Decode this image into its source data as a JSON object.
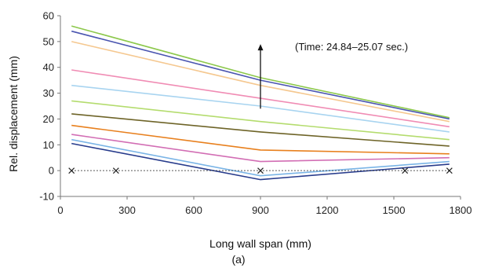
{
  "chart_data": {
    "type": "line",
    "xlabel": "Long wall span (mm)",
    "ylabel": "Rel. displacement (mm)",
    "xlim": [
      0,
      1800
    ],
    "ylim": [
      -10,
      60
    ],
    "x_ticks": [
      "0",
      "300",
      "600",
      "900",
      "1200",
      "1500",
      "1800"
    ],
    "y_ticks": [
      "-10",
      "0",
      "10",
      "20",
      "30",
      "40",
      "50",
      "60"
    ],
    "grid": false,
    "annotation": "(Time: 24.84–25.07 sec.)",
    "caption": "(a)",
    "x": [
      50,
      900,
      1750
    ],
    "series": [
      {
        "color": "#8cc84b",
        "values": [
          56,
          36,
          20.5
        ]
      },
      {
        "color": "#4a55b0",
        "values": [
          54,
          35,
          20
        ]
      },
      {
        "color": "#f5c890",
        "values": [
          50,
          33,
          19
        ]
      },
      {
        "color": "#f08cb4",
        "values": [
          39,
          28,
          17
        ]
      },
      {
        "color": "#a8d4f0",
        "values": [
          33,
          25,
          15
        ]
      },
      {
        "color": "#b4dc6e",
        "values": [
          27,
          19,
          12
        ]
      },
      {
        "color": "#6e6428",
        "values": [
          22,
          15,
          9.5
        ]
      },
      {
        "color": "#e8801e",
        "values": [
          17.5,
          8,
          6.5
        ]
      },
      {
        "color": "#d26eb4",
        "values": [
          14,
          3.5,
          5
        ]
      },
      {
        "color": "#7ab4e6",
        "values": [
          12,
          -2,
          3.5
        ]
      },
      {
        "color": "#283c8c",
        "values": [
          10.5,
          -3.5,
          2.5
        ]
      }
    ],
    "reference_line": {
      "style": "dotted",
      "marker": "x",
      "x": [
        50,
        250,
        900,
        1550,
        1750
      ],
      "y": [
        0,
        0,
        0,
        0,
        0
      ]
    },
    "arrow": {
      "x": 900,
      "y_from": 24,
      "y_to": 49
    }
  }
}
